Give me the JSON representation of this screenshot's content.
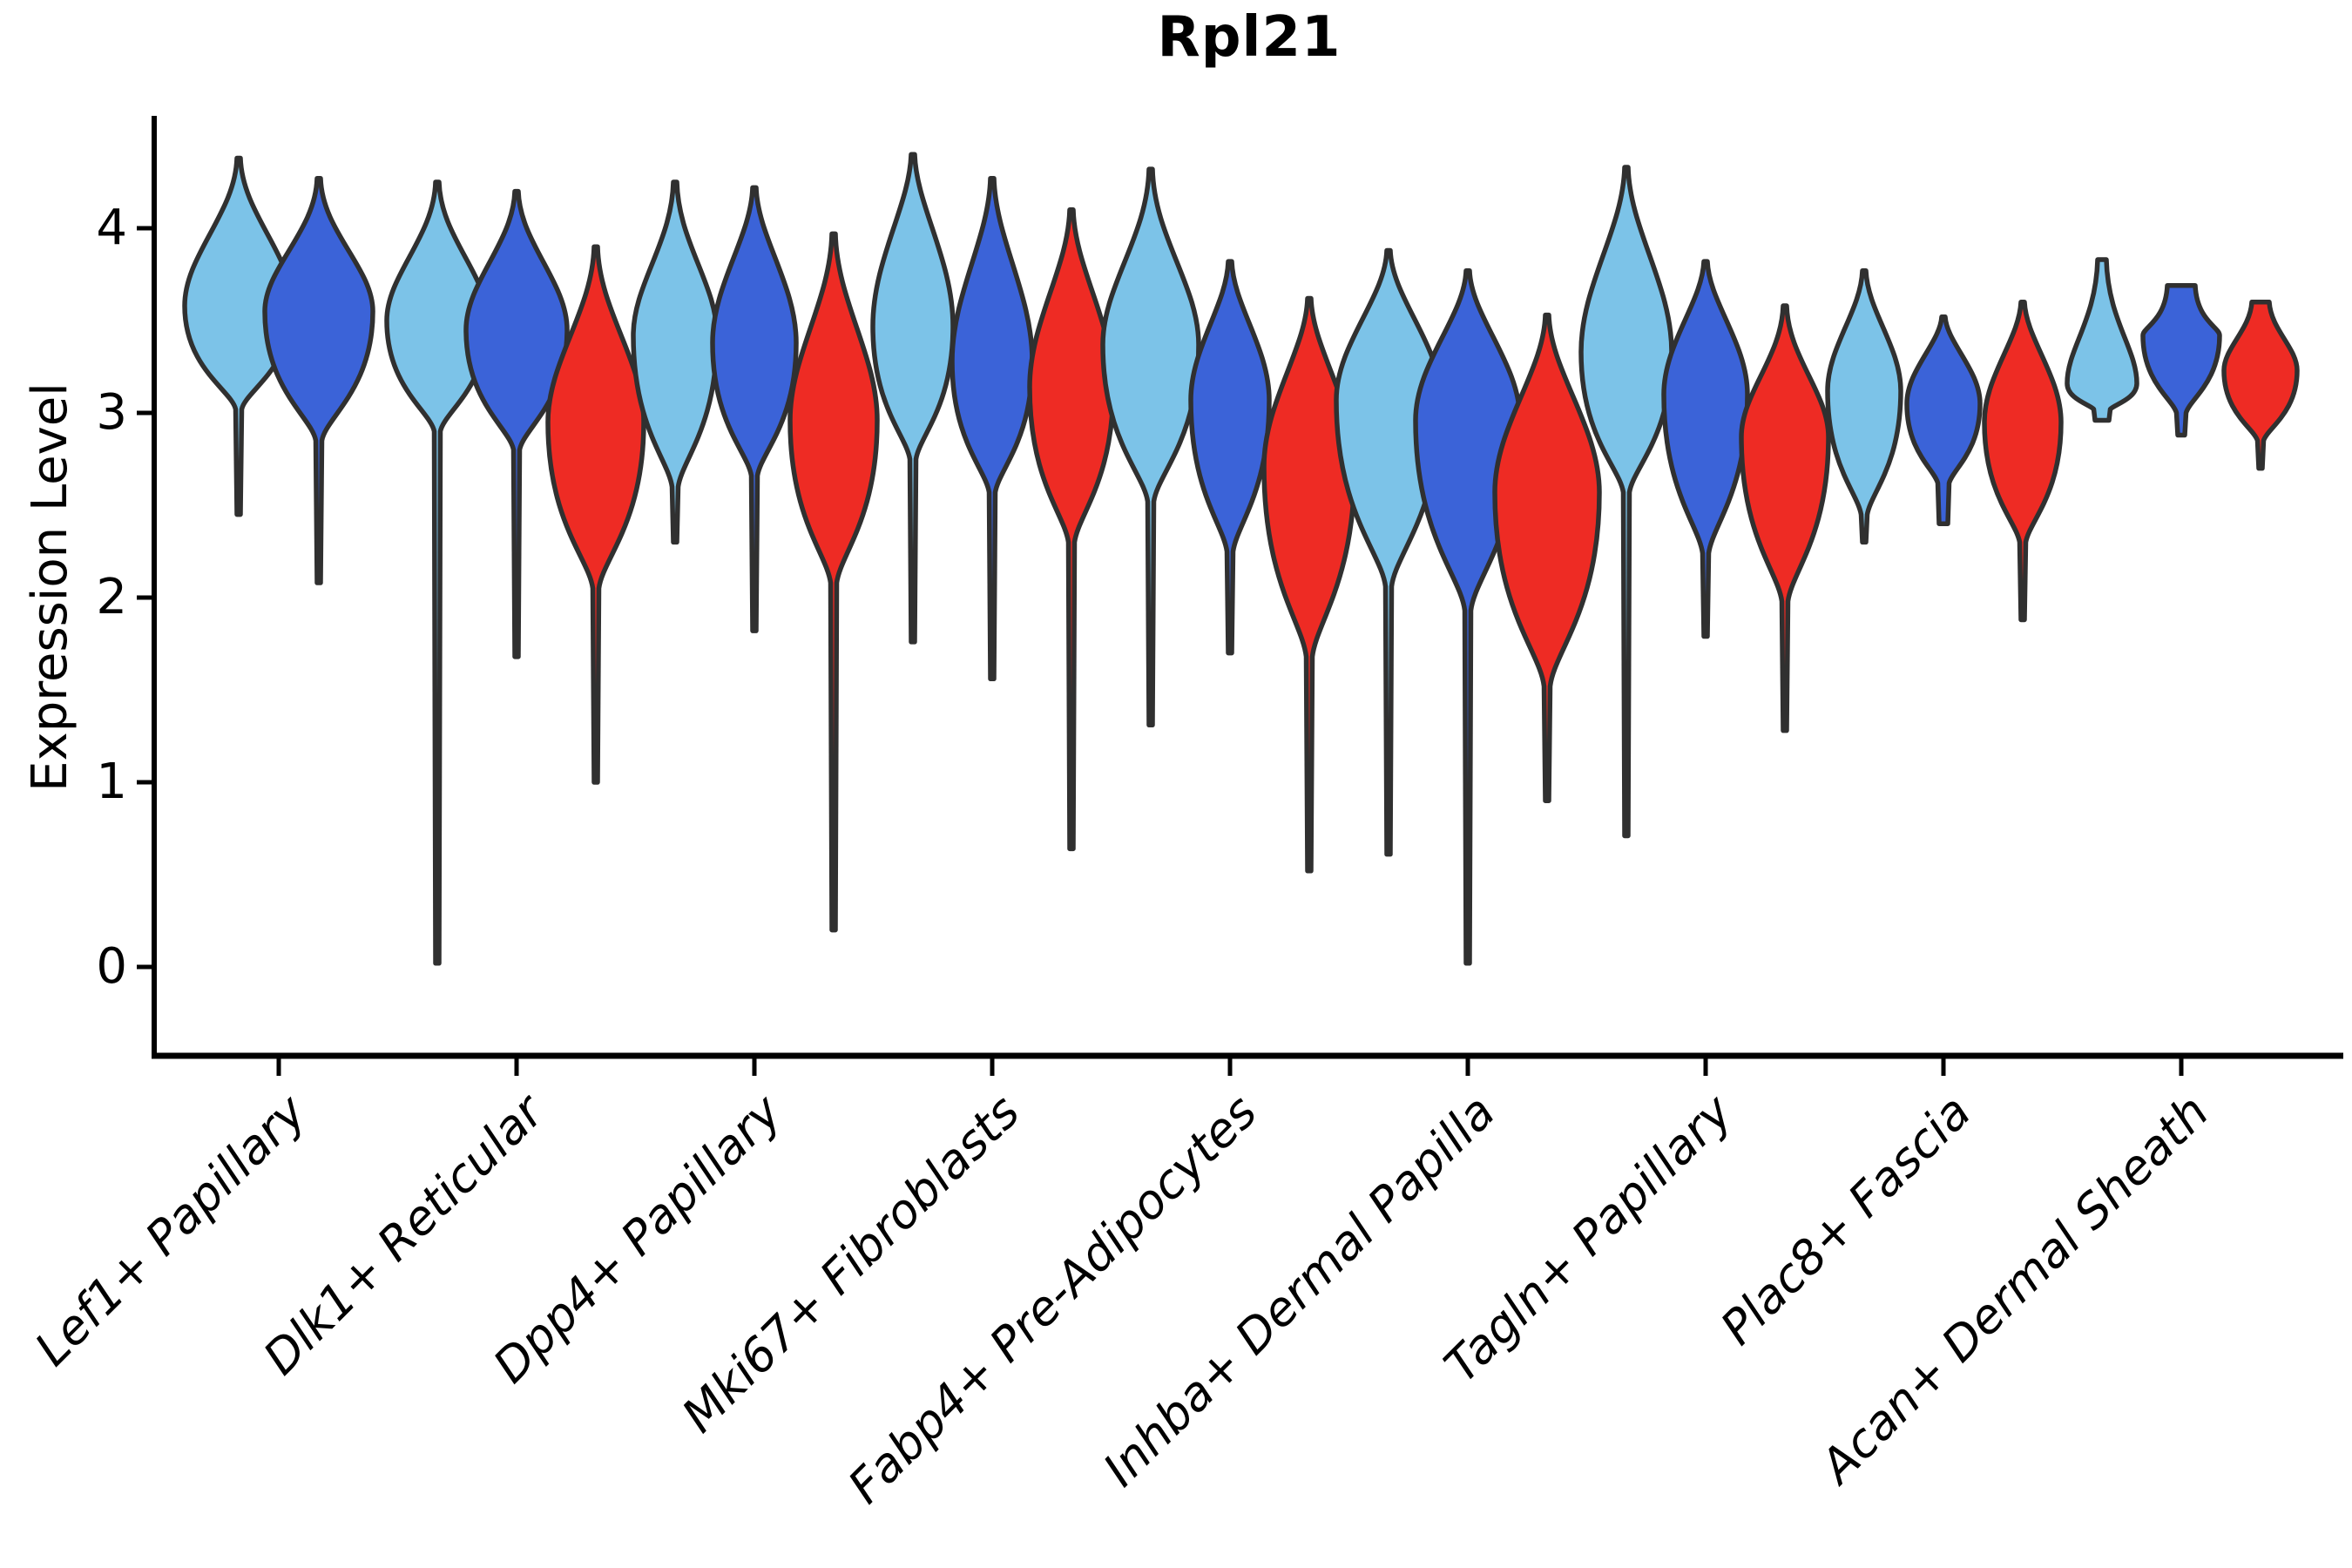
{
  "figure": {
    "title": "Rpl21",
    "ylabel": "Expression Level"
  },
  "chart_data": {
    "type": "violin",
    "title": "Rpl21",
    "xlabel": "",
    "ylabel": "Expression Level",
    "grid": false,
    "legend_position": "none",
    "yticks": [
      0,
      1,
      2,
      3,
      4
    ],
    "ylim": [
      -0.5,
      4.6
    ],
    "categories": [
      "Lef1+ Papillary",
      "Dlk1+ Reticular",
      "Dpp4+ Papillary",
      "Mki67+ Fibroblasts",
      "Fabp4+ Pre-Adipocytes",
      "Inhba+ Dermal Papilla",
      "Tagln+ Papillary",
      "Plac8+ Fascia",
      "Acan+ Dermal Sheath"
    ],
    "series_colors": [
      "#7CC3E8",
      "#3B63D8",
      "#EE2B24"
    ],
    "outline_color": "#303030",
    "axis_color": "#000000",
    "violin_value_keys": "tip=top of upper tail, sh=shoulder where body flares, pk=widest point, hp=hip where body narrows, tl=end of lower tail (expression-level units); hw=max half-width px; tc/bc=blunt cap half-widths px",
    "groups": [
      {
        "label": "Lef1+ Papillary",
        "violins": [
          {
            "c": 0,
            "tip": 4.38,
            "sh": 4.08,
            "pk": 3.58,
            "hp": 3.02,
            "tl": 2.45,
            "hw": 62
          },
          {
            "c": 1,
            "tip": 4.27,
            "sh": 3.98,
            "pk": 3.55,
            "hp": 2.85,
            "tl": 2.08,
            "hw": 62
          }
        ]
      },
      {
        "label": "Dlk1+ Reticular",
        "violins": [
          {
            "c": 0,
            "tip": 4.25,
            "sh": 3.95,
            "pk": 3.5,
            "hp": 2.9,
            "tl": 0.02,
            "hw": 58
          },
          {
            "c": 1,
            "tip": 4.2,
            "sh": 3.92,
            "pk": 3.45,
            "hp": 2.8,
            "tl": 1.68,
            "hw": 58
          },
          {
            "c": 2,
            "tip": 3.9,
            "sh": 3.55,
            "pk": 2.95,
            "hp": 2.05,
            "tl": 1.0,
            "hw": 55
          }
        ]
      },
      {
        "label": "Dpp4+ Papillary",
        "violins": [
          {
            "c": 0,
            "tip": 4.25,
            "sh": 3.92,
            "pk": 3.42,
            "hp": 2.6,
            "tl": 2.3,
            "hw": 48
          },
          {
            "c": 1,
            "tip": 4.22,
            "sh": 3.95,
            "pk": 3.38,
            "hp": 2.66,
            "tl": 1.82,
            "hw": 48
          },
          {
            "c": 2,
            "tip": 3.97,
            "sh": 3.6,
            "pk": 2.96,
            "hp": 2.08,
            "tl": 0.2,
            "hw": 50
          }
        ]
      },
      {
        "label": "Mki67+ Fibroblasts",
        "violins": [
          {
            "c": 0,
            "tip": 4.4,
            "sh": 4.12,
            "pk": 3.47,
            "hp": 2.75,
            "tl": 1.76,
            "hw": 46
          },
          {
            "c": 1,
            "tip": 4.27,
            "sh": 3.94,
            "pk": 3.28,
            "hp": 2.57,
            "tl": 1.56,
            "hw": 46
          },
          {
            "c": 2,
            "tip": 4.1,
            "sh": 3.78,
            "pk": 3.14,
            "hp": 2.3,
            "tl": 0.64,
            "hw": 48
          }
        ]
      },
      {
        "label": "Fabp4+ Pre-Adipocytes",
        "violins": [
          {
            "c": 0,
            "tip": 4.32,
            "sh": 3.95,
            "pk": 3.37,
            "hp": 2.52,
            "tl": 1.31,
            "hw": 55
          },
          {
            "c": 1,
            "tip": 3.82,
            "sh": 3.58,
            "pk": 3.07,
            "hp": 2.25,
            "tl": 1.7,
            "hw": 45
          },
          {
            "c": 2,
            "tip": 3.62,
            "sh": 3.34,
            "pk": 2.71,
            "hp": 1.68,
            "tl": 0.52,
            "hw": 52
          }
        ]
      },
      {
        "label": "Inhba+ Dermal Papilla",
        "violins": [
          {
            "c": 0,
            "tip": 3.88,
            "sh": 3.62,
            "pk": 3.07,
            "hp": 2.06,
            "tl": 0.61,
            "hw": 60
          },
          {
            "c": 1,
            "tip": 3.77,
            "sh": 3.52,
            "pk": 2.96,
            "hp": 1.93,
            "tl": 0.02,
            "hw": 60
          },
          {
            "c": 2,
            "tip": 3.53,
            "sh": 3.22,
            "pk": 2.57,
            "hp": 1.52,
            "tl": 0.9,
            "hw": 60
          }
        ]
      },
      {
        "label": "Tagln+ Papillary",
        "violins": [
          {
            "c": 0,
            "tip": 4.33,
            "sh": 3.99,
            "pk": 3.33,
            "hp": 2.57,
            "tl": 0.71,
            "hw": 52
          },
          {
            "c": 1,
            "tip": 3.82,
            "sh": 3.6,
            "pk": 3.1,
            "hp": 2.24,
            "tl": 1.79,
            "hw": 48
          },
          {
            "c": 2,
            "tip": 3.58,
            "sh": 3.3,
            "pk": 2.87,
            "hp": 1.98,
            "tl": 1.28,
            "hw": 50
          }
        ]
      },
      {
        "label": "Plac8+ Fascia",
        "violins": [
          {
            "c": 0,
            "tip": 3.77,
            "sh": 3.55,
            "pk": 3.12,
            "hp": 2.45,
            "tl": 2.3,
            "hw": 42
          },
          {
            "c": 1,
            "tip": 3.52,
            "sh": 3.38,
            "pk": 3.05,
            "hp": 2.62,
            "tl": 2.4,
            "hw": 42,
            "bc": 5
          },
          {
            "c": 2,
            "tip": 3.6,
            "sh": 3.4,
            "pk": 2.95,
            "hp": 2.3,
            "tl": 1.88,
            "hw": 44
          }
        ]
      },
      {
        "label": "Acan+ Dermal Sheath",
        "violins": [
          {
            "c": 0,
            "tip": 3.83,
            "sh": 3.5,
            "pk": 3.16,
            "hp": 3.02,
            "tl": 2.96,
            "hw": 40,
            "tc": 5,
            "bc": 8
          },
          {
            "c": 1,
            "tip": 3.69,
            "sh": 3.5,
            "pk": 3.42,
            "hp": 3.0,
            "tl": 2.88,
            "hw": 44,
            "tc": 16,
            "bc": 4
          },
          {
            "c": 2,
            "tip": 3.6,
            "sh": 3.45,
            "pk": 3.23,
            "hp": 2.85,
            "tl": 2.7,
            "hw": 42,
            "tc": 10
          }
        ]
      }
    ]
  }
}
